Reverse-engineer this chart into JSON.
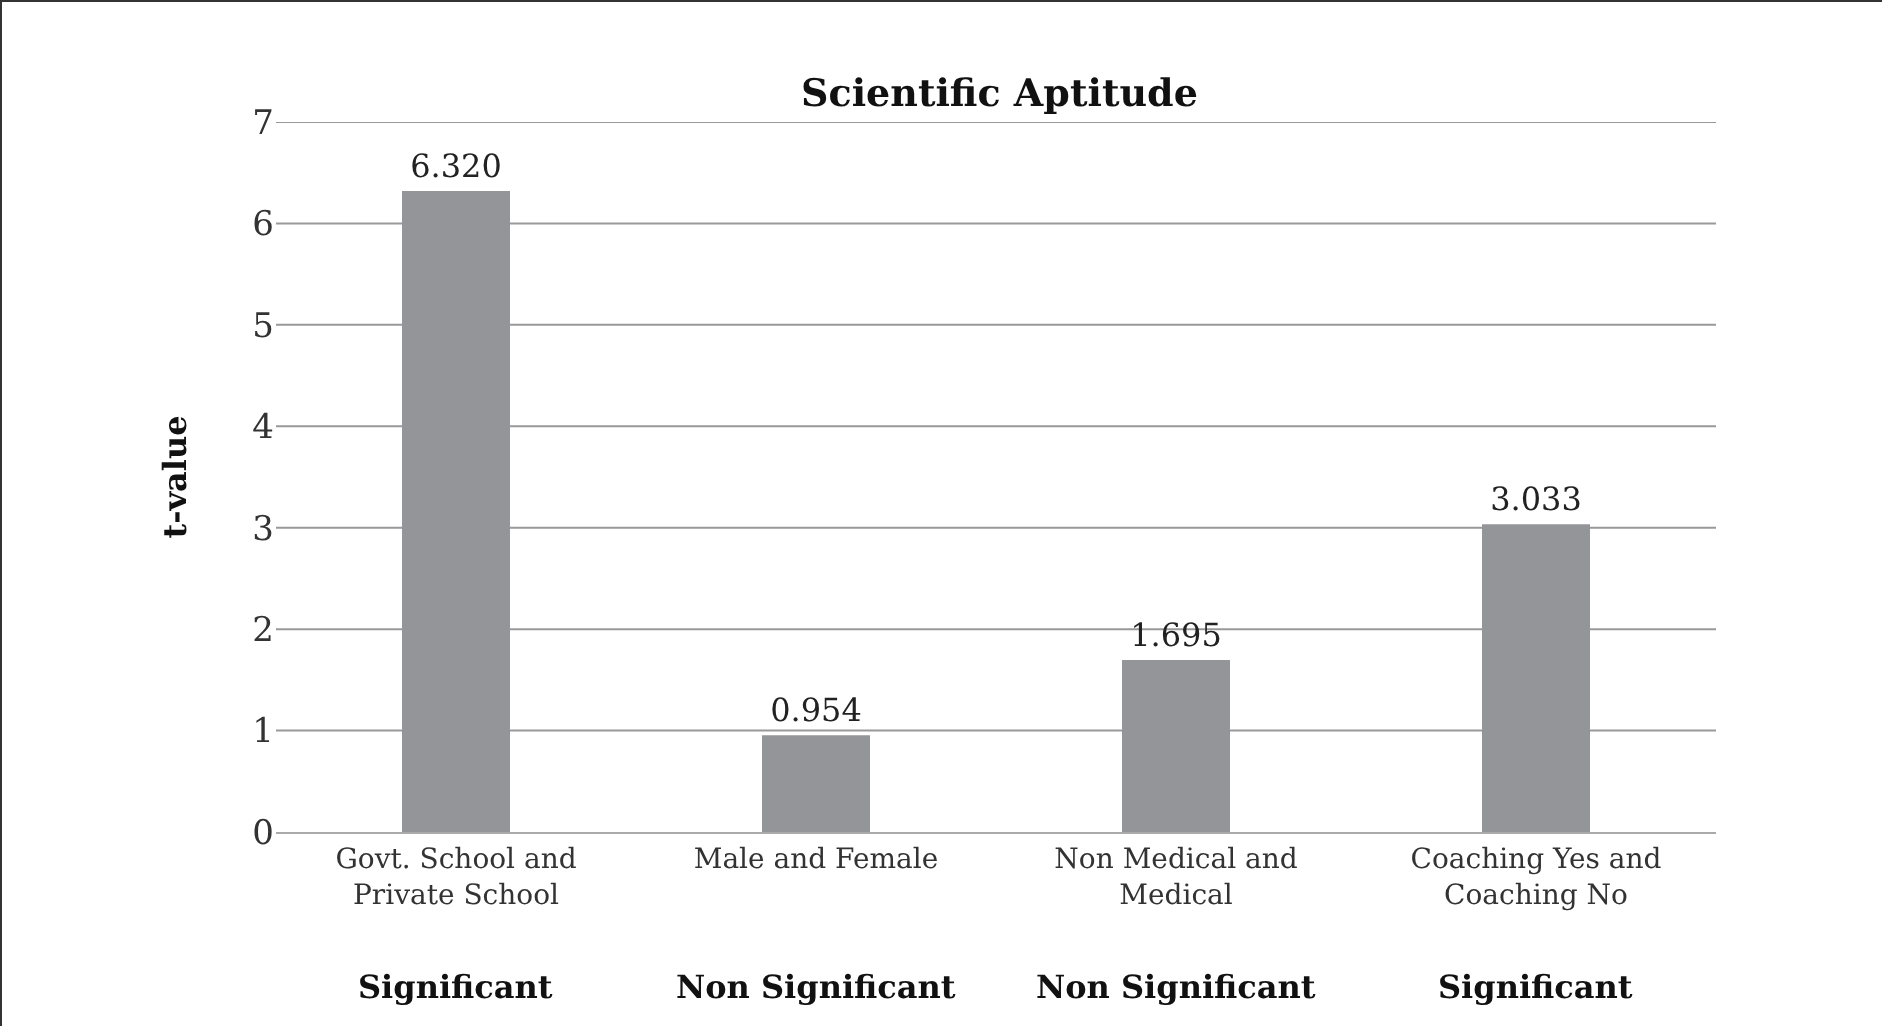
{
  "chart_data": {
    "type": "bar",
    "title": "Scientific Aptitude",
    "ylabel": "t-value",
    "categories": [
      "Govt. School and Private School",
      "Male and Female",
      "Non Medical and Medical",
      "Coaching Yes and Coaching No"
    ],
    "values": [
      6.32,
      0.954,
      1.695,
      3.033
    ],
    "value_labels": [
      "6.320",
      "0.954",
      "1.695",
      "3.033"
    ],
    "color": "#939598",
    "ylim": [
      0,
      7
    ],
    "yticks": [
      0,
      1,
      2,
      3,
      4,
      5,
      6,
      7
    ],
    "grid": "y",
    "annotations": [
      "Significant",
      "Non Significant",
      "Non Significant",
      "Significant"
    ]
  }
}
